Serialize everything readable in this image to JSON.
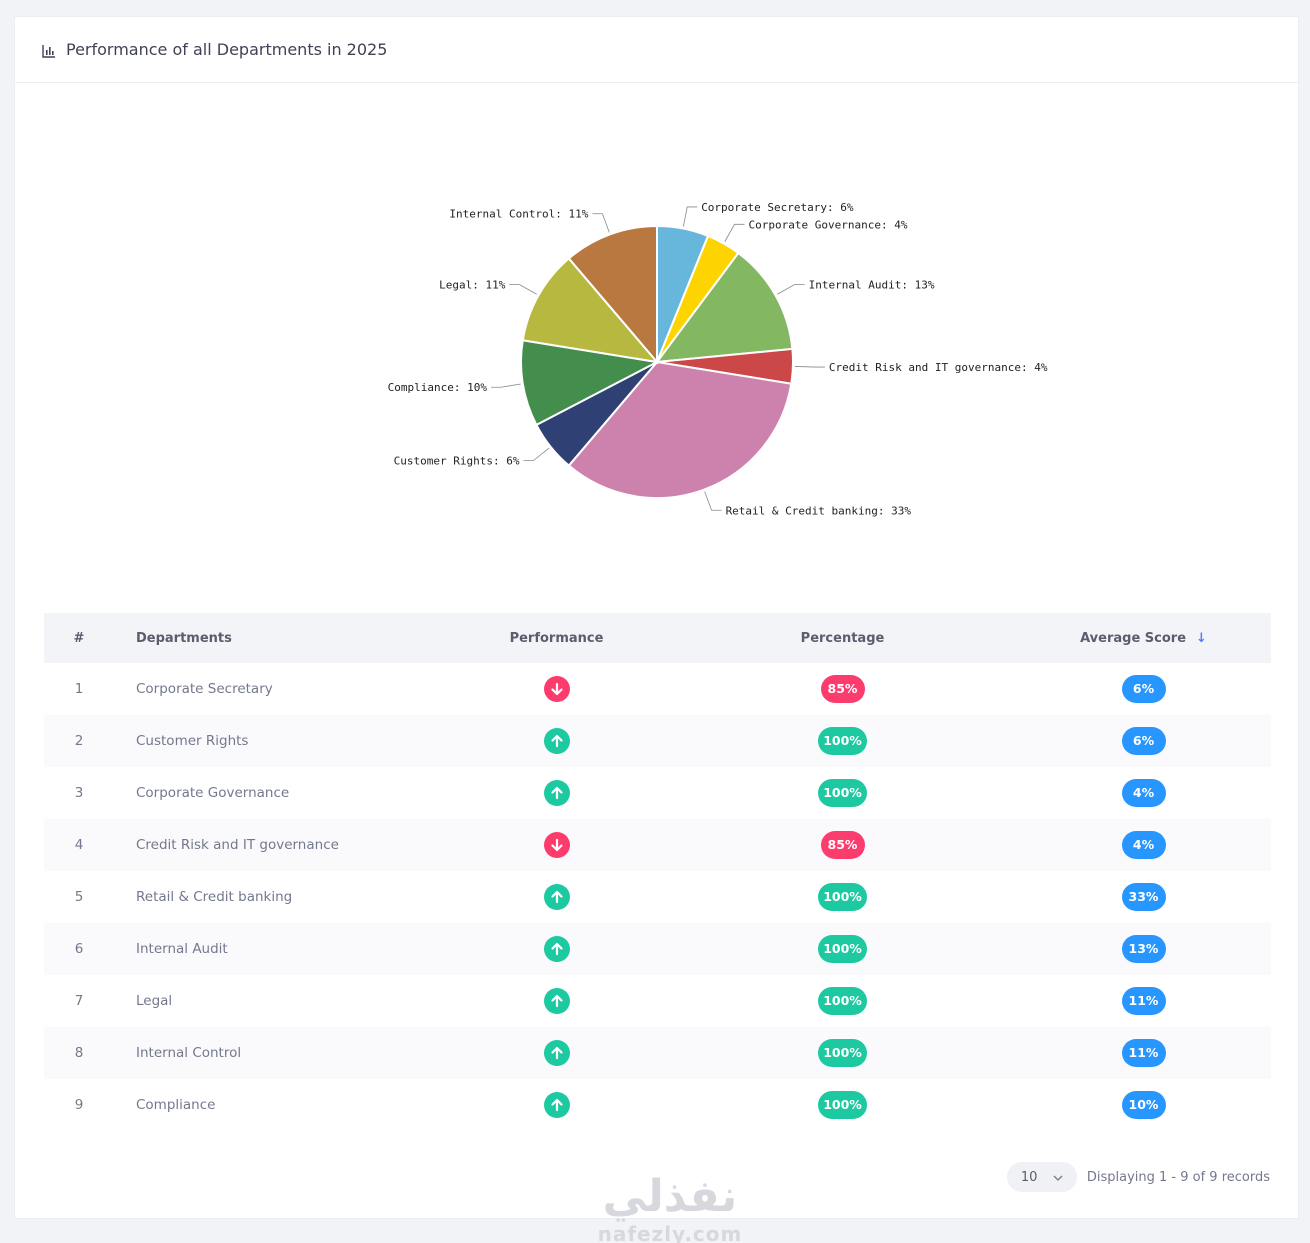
{
  "header": {
    "title": "Performance of all Departments in 2025",
    "icon": "bar-chart-icon"
  },
  "chart_data": {
    "type": "pie",
    "slices": [
      {
        "label": "Corporate Secretary",
        "value": 6,
        "label_text": "Corporate Secretary: 6%",
        "color": "#67b7dc"
      },
      {
        "label": "Corporate Governance",
        "value": 4,
        "label_text": "Corporate Governance: 4%",
        "color": "#fdd400"
      },
      {
        "label": "Internal Audit",
        "value": 13,
        "label_text": "Internal Audit: 13%",
        "color": "#84b761"
      },
      {
        "label": "Credit Risk and IT governance",
        "value": 4,
        "label_text": "Credit Risk and IT governance: 4%",
        "color": "#cc4748"
      },
      {
        "label": "Retail & Credit banking",
        "value": 33,
        "label_text": "Retail & Credit banking: 33%",
        "color": "#cd82ad"
      },
      {
        "label": "Customer Rights",
        "value": 6,
        "label_text": "Customer Rights: 6%",
        "color": "#2f4074"
      },
      {
        "label": "Compliance",
        "value": 10,
        "label_text": "Compliance: 10%",
        "color": "#448e4d"
      },
      {
        "label": "Legal",
        "value": 11,
        "label_text": "Legal: 11%",
        "color": "#b7b83f"
      },
      {
        "label": "Internal Control",
        "value": 11,
        "label_text": "Internal Control: 11%",
        "color": "#b9783f"
      }
    ]
  },
  "table": {
    "headers": {
      "num": "#",
      "departments": "Departments",
      "performance": "Performance",
      "percentage": "Percentage",
      "average": "Average Score"
    },
    "rows": [
      {
        "num": "1",
        "department": "Corporate Secretary",
        "trend": "down",
        "percentage": "85%",
        "average": "6%"
      },
      {
        "num": "2",
        "department": "Customer Rights",
        "trend": "up",
        "percentage": "100%",
        "average": "6%"
      },
      {
        "num": "3",
        "department": "Corporate Governance",
        "trend": "up",
        "percentage": "100%",
        "average": "4%"
      },
      {
        "num": "4",
        "department": "Credit Risk and IT governance",
        "trend": "down",
        "percentage": "85%",
        "average": "4%"
      },
      {
        "num": "5",
        "department": "Retail & Credit banking",
        "trend": "up",
        "percentage": "100%",
        "average": "33%"
      },
      {
        "num": "6",
        "department": "Internal Audit",
        "trend": "up",
        "percentage": "100%",
        "average": "13%"
      },
      {
        "num": "7",
        "department": "Legal",
        "trend": "up",
        "percentage": "100%",
        "average": "11%"
      },
      {
        "num": "8",
        "department": "Internal Control",
        "trend": "up",
        "percentage": "100%",
        "average": "11%"
      },
      {
        "num": "9",
        "department": "Compliance",
        "trend": "up",
        "percentage": "100%",
        "average": "10%"
      }
    ]
  },
  "pagination": {
    "page_size": "10",
    "summary": "Displaying 1 - 9 of 9 records"
  },
  "watermark": {
    "arabic": "نفذلي",
    "latin": "nafezly.com"
  },
  "colors": {
    "up": "#1dc9a0",
    "down": "#fd3c6e",
    "avg_badge": "#2797ff"
  }
}
